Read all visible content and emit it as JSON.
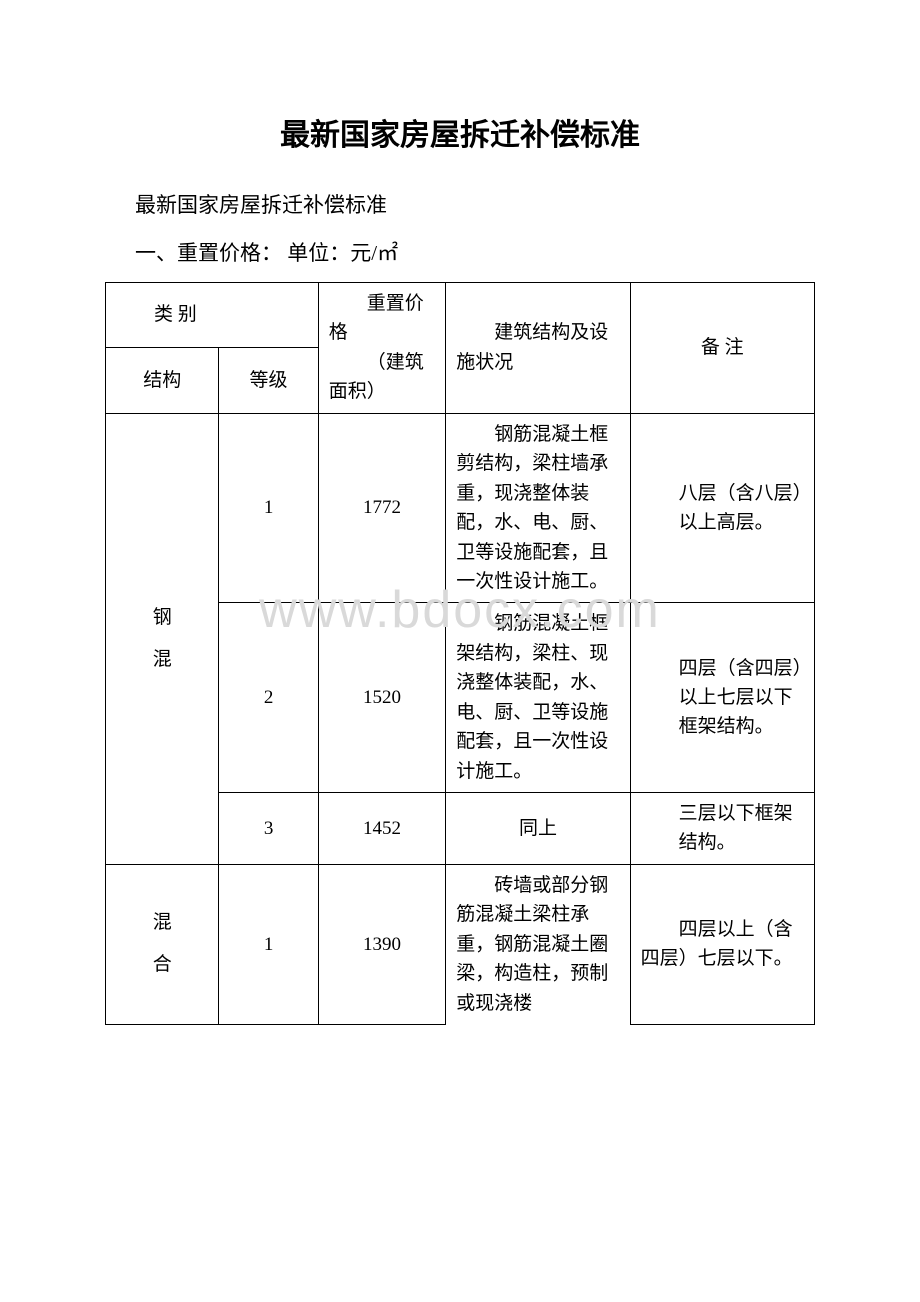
{
  "title": "最新国家房屋拆迁补偿标准",
  "subtitle": "最新国家房屋拆迁补偿标准",
  "section1": "一、重置价格： 单位：元/㎡",
  "watermark": "www.bdocx.com",
  "header": {
    "category": "类 别",
    "price_line1": "重置价格",
    "price_line2": "（建筑面积）",
    "desc": "建筑结构及设施状况",
    "note": "备 注",
    "structure": "结构",
    "grade": "等级"
  },
  "rows": {
    "struct1": "钢混",
    "g1": "1",
    "p1": "1772",
    "d1": "钢筋混凝土框剪结构，梁柱墙承重，现浇整体装配，水、电、厨、卫等设施配套，且一次性设计施工。",
    "n1_a": "八层（含八层）",
    "n1_b": "以上高层。",
    "g2": "2",
    "p2": "1520",
    "d2": "钢筋混凝土框架结构，梁柱、现浇整体装配，水、电、厨、卫等设施配套，且一次性设计施工。",
    "n2_a": "四层（含四层）",
    "n2_b": "以上七层以下",
    "n2_c": "框架结构。",
    "g3": "3",
    "p3": "1452",
    "d3": "同上",
    "n3_a": "三层以下框架",
    "n3_b": "结构。",
    "struct2": "混合",
    "g4": "1",
    "p4": "1390",
    "d4": "砖墙或部分钢筋混凝土梁柱承重，钢筋混凝土圈梁，构造柱，预制或现浇楼",
    "n4": "四层以上（含四层）七层以下。"
  }
}
